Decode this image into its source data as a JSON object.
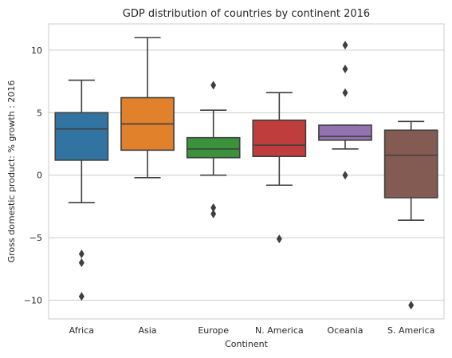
{
  "chart_data": {
    "type": "box",
    "title": "GDP distribution of countries by continent 2016",
    "xlabel": "Continent",
    "ylabel": "Gross domestic product: % growth : 2016",
    "ylim": [
      -11.5,
      12.1
    ],
    "yticks": [
      -10,
      -5,
      0,
      5,
      10
    ],
    "ytick_labels": [
      "−10",
      "−5",
      "0",
      "5",
      "10"
    ],
    "grid": "horizontal",
    "categories": [
      "Africa",
      "Asia",
      "Europe",
      "N. America",
      "Oceania",
      "S. America"
    ],
    "series": [
      {
        "category": "Africa",
        "color": "#3274a1",
        "whisker_low": -2.2,
        "q1": 1.2,
        "median": 3.7,
        "q3": 5.0,
        "whisker_high": 7.6,
        "outliers": [
          -6.3,
          -7.0,
          -9.7
        ]
      },
      {
        "category": "Asia",
        "color": "#e1812c",
        "whisker_low": -0.2,
        "q1": 2.0,
        "median": 4.1,
        "q3": 6.2,
        "whisker_high": 11.0,
        "outliers": []
      },
      {
        "category": "Europe",
        "color": "#3a923a",
        "whisker_low": 0.0,
        "q1": 1.4,
        "median": 2.1,
        "q3": 3.0,
        "whisker_high": 5.2,
        "outliers": [
          7.2,
          -2.6,
          -3.1
        ]
      },
      {
        "category": "N. America",
        "color": "#c03d3e",
        "whisker_low": -0.8,
        "q1": 1.5,
        "median": 2.4,
        "q3": 4.4,
        "whisker_high": 6.6,
        "outliers": [
          -5.1
        ]
      },
      {
        "category": "Oceania",
        "color": "#9372b2",
        "whisker_low": 2.1,
        "q1": 2.8,
        "median": 3.1,
        "q3": 4.0,
        "whisker_high": 4.0,
        "outliers": [
          10.4,
          8.5,
          6.6,
          0.0
        ]
      },
      {
        "category": "S. America",
        "color": "#845b53",
        "whisker_low": -3.6,
        "q1": -1.8,
        "median": 1.6,
        "q3": 3.6,
        "whisker_high": 4.3,
        "outliers": [
          -10.4
        ]
      }
    ]
  }
}
